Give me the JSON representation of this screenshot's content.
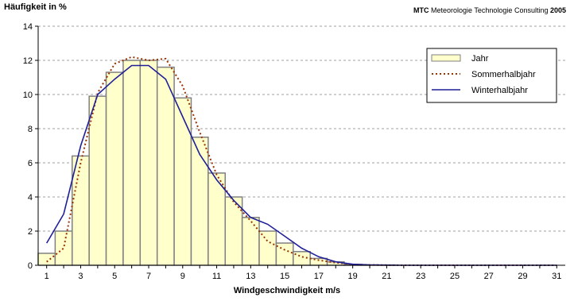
{
  "chart_data": {
    "type": "bar",
    "ylabel": "Häufigkeit  in %",
    "xlabel": "Windgeschwindigkeit    m/s",
    "credit": {
      "brand": "MTC",
      "text": " Meteorologie Technologie Consulting ",
      "year": "2005"
    },
    "x": [
      1,
      2,
      3,
      4,
      5,
      6,
      7,
      8,
      9,
      10,
      11,
      12,
      13,
      14,
      15,
      16,
      17,
      18,
      19,
      20,
      21,
      22,
      23,
      24,
      25,
      26,
      27,
      28,
      29,
      30,
      31
    ],
    "xticks": [
      "1",
      "3",
      "5",
      "7",
      "9",
      "11",
      "13",
      "15",
      "17",
      "19",
      "21",
      "23",
      "25",
      "27",
      "29",
      "31"
    ],
    "ylim": [
      0,
      14
    ],
    "yticks": [
      "0",
      "2",
      "4",
      "6",
      "8",
      "10",
      "12",
      "14"
    ],
    "grid": true,
    "legend_position": "top-right",
    "series": [
      {
        "name": "Jahr",
        "kind": "bar",
        "color": "#FFFFCC",
        "edge": "#808080",
        "values": [
          0.7,
          2.0,
          6.4,
          9.9,
          11.3,
          12.0,
          12.0,
          11.6,
          9.8,
          7.5,
          5.4,
          4.0,
          2.8,
          2.0,
          1.3,
          0.8,
          0.4,
          0.2,
          0.05,
          0.02,
          0.01,
          0,
          0,
          0,
          0,
          0,
          0,
          0,
          0,
          0,
          0
        ]
      },
      {
        "name": "Sommerhalbjahr",
        "kind": "line",
        "style": "dotted",
        "color": "#993300",
        "values": [
          0.2,
          1.0,
          6.0,
          10.1,
          11.8,
          12.2,
          12.0,
          12.1,
          10.5,
          7.8,
          5.3,
          3.7,
          2.6,
          1.4,
          0.9,
          0.5,
          0.3,
          0.15,
          0.05,
          0.02,
          0.01,
          0,
          0,
          0,
          0,
          0,
          0,
          0,
          0,
          0,
          0
        ]
      },
      {
        "name": "Winterhalbjahr",
        "kind": "line",
        "style": "solid",
        "color": "#1F1F99",
        "values": [
          1.3,
          3.0,
          7.0,
          10.0,
          10.9,
          11.7,
          11.7,
          10.9,
          8.7,
          6.5,
          5.0,
          3.8,
          2.8,
          2.4,
          1.7,
          1.0,
          0.5,
          0.2,
          0.06,
          0.02,
          0.01,
          0,
          0,
          0,
          0,
          0,
          0,
          0,
          0,
          0,
          0
        ]
      }
    ]
  }
}
